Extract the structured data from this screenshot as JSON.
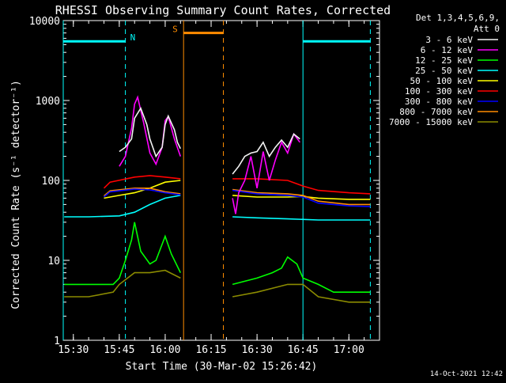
{
  "chart_data": {
    "type": "line",
    "title": "RHESSI Observing Summary Count Rates, Corrected",
    "xlabel": "Start Time (30-Mar-02 15:26:42)",
    "ylabel": "Corrected Count Rate (s⁻¹ detector⁻¹)",
    "y_scale": "log",
    "ylim": [
      1,
      10000
    ],
    "xlim": [
      "15:26:42",
      "17:10:00"
    ],
    "x_ticks": [
      "15:30",
      "15:45",
      "16:00",
      "16:15",
      "16:30",
      "16:45",
      "17:00"
    ],
    "y_ticks": [
      "1",
      "10",
      "100",
      "1000",
      "10000"
    ],
    "legend_header": [
      "Det 1,3,4,5,6,9,",
      "Att 0"
    ],
    "legend_placement": "right",
    "timestamp": "14-Oct-2021 12:42",
    "markers": [
      {
        "label": "N",
        "color": "#00ffff",
        "start": "15:26:42",
        "end": "15:47:00",
        "level": 5500
      },
      {
        "label": "S",
        "color": "#ff8c00",
        "start": "16:06:00",
        "end": "16:19:00",
        "level": 7000
      },
      {
        "label": "",
        "color": "#00ffff",
        "start": "16:45:00",
        "end": "17:07:00",
        "level": 5500
      }
    ],
    "series": [
      {
        "name": "3 - 6 keV",
        "color": "#000000",
        "points": [
          [
            "15:45",
            230
          ],
          [
            "15:47",
            260
          ],
          [
            "15:49",
            330
          ],
          [
            "15:50",
            600
          ],
          [
            "15:52",
            800
          ],
          [
            "15:54",
            500
          ],
          [
            "15:55",
            330
          ],
          [
            "15:57",
            200
          ],
          [
            "15:59",
            260
          ],
          [
            "16:00",
            500
          ],
          [
            "16:01",
            640
          ],
          [
            "16:03",
            430
          ],
          [
            "16:04",
            300
          ],
          [
            "16:05",
            250
          ],
          [
            "16:22",
            120
          ],
          [
            "16:24",
            150
          ],
          [
            "16:26",
            200
          ],
          [
            "16:28",
            220
          ],
          [
            "16:30",
            230
          ],
          [
            "16:32",
            300
          ],
          [
            "16:34",
            200
          ],
          [
            "16:36",
            260
          ],
          [
            "16:38",
            320
          ],
          [
            "16:40",
            260
          ],
          [
            "16:42",
            380
          ],
          [
            "16:44",
            330
          ]
        ]
      },
      {
        "name": "6 - 12 keV",
        "color": "#ff00ff",
        "points": [
          [
            "15:45",
            150
          ],
          [
            "15:47",
            200
          ],
          [
            "15:49",
            450
          ],
          [
            "15:50",
            900
          ],
          [
            "15:51",
            1100
          ],
          [
            "15:53",
            520
          ],
          [
            "15:55",
            220
          ],
          [
            "15:57",
            160
          ],
          [
            "15:59",
            260
          ],
          [
            "16:00",
            560
          ],
          [
            "16:01",
            630
          ],
          [
            "16:03",
            330
          ],
          [
            "16:05",
            200
          ],
          [
            "16:22",
            60
          ],
          [
            "16:23",
            38
          ],
          [
            "16:24",
            70
          ],
          [
            "16:26",
            100
          ],
          [
            "16:28",
            200
          ],
          [
            "16:30",
            80
          ],
          [
            "16:32",
            230
          ],
          [
            "16:34",
            100
          ],
          [
            "16:36",
            180
          ],
          [
            "16:38",
            300
          ],
          [
            "16:40",
            220
          ],
          [
            "16:42",
            380
          ],
          [
            "16:44",
            300
          ]
        ]
      },
      {
        "name": "12 - 25 keV",
        "color": "#00ff00",
        "points": [
          [
            "15:27",
            5
          ],
          [
            "15:35",
            5
          ],
          [
            "15:43",
            5
          ],
          [
            "15:45",
            6
          ],
          [
            "15:47",
            10
          ],
          [
            "15:49",
            18
          ],
          [
            "15:50",
            30
          ],
          [
            "15:52",
            13
          ],
          [
            "15:55",
            9
          ],
          [
            "15:57",
            10
          ],
          [
            "16:00",
            20
          ],
          [
            "16:02",
            12
          ],
          [
            "16:05",
            7
          ],
          [
            "16:22",
            5
          ],
          [
            "16:30",
            6
          ],
          [
            "16:35",
            7
          ],
          [
            "16:38",
            8
          ],
          [
            "16:40",
            11
          ],
          [
            "16:43",
            9
          ],
          [
            "16:45",
            6
          ],
          [
            "16:50",
            5
          ],
          [
            "16:55",
            4
          ],
          [
            "17:00",
            4
          ],
          [
            "17:07",
            4
          ]
        ]
      },
      {
        "name": "25 - 50 keV",
        "color": "#00ffff",
        "points": [
          [
            "15:27",
            35
          ],
          [
            "15:35",
            35
          ],
          [
            "15:45",
            36
          ],
          [
            "15:50",
            40
          ],
          [
            "15:55",
            50
          ],
          [
            "16:00",
            60
          ],
          [
            "16:05",
            65
          ],
          [
            "16:22",
            35
          ],
          [
            "16:30",
            34
          ],
          [
            "16:40",
            33
          ],
          [
            "16:50",
            32
          ],
          [
            "17:00",
            32
          ],
          [
            "17:07",
            32
          ]
        ]
      },
      {
        "name": "50 - 100 keV",
        "color": "#ffff00",
        "points": [
          [
            "15:27",
            58
          ],
          [
            "15:40",
            60
          ],
          [
            "15:45",
            65
          ],
          [
            "15:50",
            70
          ],
          [
            "15:55",
            80
          ],
          [
            "16:00",
            95
          ],
          [
            "16:05",
            100
          ],
          [
            "16:22",
            65
          ],
          [
            "16:30",
            62
          ],
          [
            "16:40",
            62
          ],
          [
            "16:45",
            63
          ],
          [
            "16:50",
            60
          ],
          [
            "17:00",
            58
          ],
          [
            "17:07",
            58
          ]
        ]
      },
      {
        "name": "100 - 300 keV",
        "color": "#ff0000",
        "points": [
          [
            "15:27",
            78
          ],
          [
            "15:40",
            80
          ],
          [
            "15:42",
            95
          ],
          [
            "15:50",
            110
          ],
          [
            "15:55",
            115
          ],
          [
            "16:00",
            110
          ],
          [
            "16:05",
            105
          ],
          [
            "16:22",
            105
          ],
          [
            "16:30",
            105
          ],
          [
            "16:40",
            100
          ],
          [
            "16:45",
            85
          ],
          [
            "16:50",
            75
          ],
          [
            "17:00",
            70
          ],
          [
            "17:07",
            68
          ]
        ]
      },
      {
        "name": "300 - 800 keV",
        "color": "#0000ff",
        "points": [
          [
            "15:27",
            60
          ],
          [
            "15:40",
            62
          ],
          [
            "15:42",
            72
          ],
          [
            "15:50",
            78
          ],
          [
            "15:55",
            76
          ],
          [
            "16:00",
            70
          ],
          [
            "16:05",
            66
          ],
          [
            "16:22",
            75
          ],
          [
            "16:30",
            68
          ],
          [
            "16:40",
            65
          ],
          [
            "16:45",
            62
          ],
          [
            "16:50",
            52
          ],
          [
            "17:00",
            48
          ],
          [
            "17:07",
            47
          ]
        ]
      },
      {
        "name": "800 - 7000 keV",
        "color": "#ff8c00",
        "points": [
          [
            "15:27",
            62
          ],
          [
            "15:40",
            64
          ],
          [
            "15:42",
            74
          ],
          [
            "15:50",
            80
          ],
          [
            "15:55",
            80
          ],
          [
            "16:00",
            72
          ],
          [
            "16:05",
            68
          ],
          [
            "16:22",
            77
          ],
          [
            "16:30",
            70
          ],
          [
            "16:40",
            68
          ],
          [
            "16:45",
            65
          ],
          [
            "16:50",
            55
          ],
          [
            "17:00",
            50
          ],
          [
            "17:07",
            50
          ]
        ]
      },
      {
        "name": "7000 - 15000 keV",
        "color": "#8b8b00",
        "points": [
          [
            "15:27",
            3.5
          ],
          [
            "15:35",
            3.5
          ],
          [
            "15:43",
            4
          ],
          [
            "15:45",
            5
          ],
          [
            "15:50",
            7
          ],
          [
            "15:55",
            7
          ],
          [
            "16:00",
            7.5
          ],
          [
            "16:05",
            6
          ],
          [
            "16:22",
            3.5
          ],
          [
            "16:30",
            4
          ],
          [
            "16:40",
            5
          ],
          [
            "16:45",
            5
          ],
          [
            "16:50",
            3.5
          ],
          [
            "17:00",
            3
          ],
          [
            "17:07",
            3
          ]
        ]
      }
    ]
  }
}
